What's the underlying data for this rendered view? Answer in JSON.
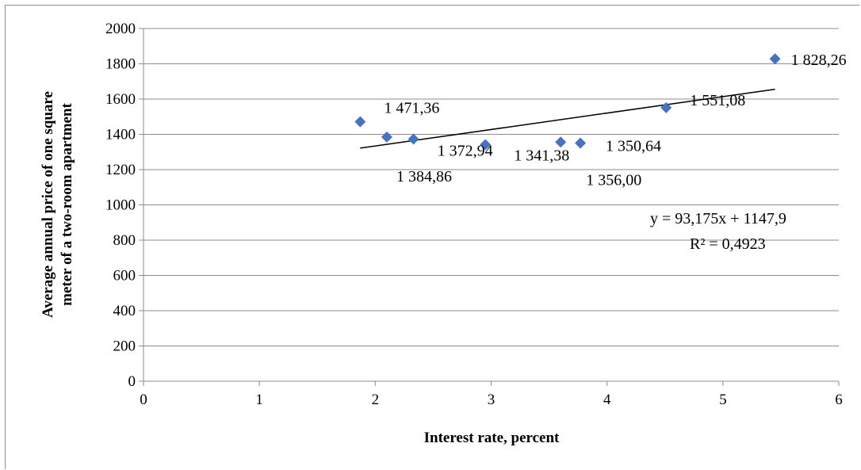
{
  "chart_data": {
    "type": "scatter",
    "xlabel": "Interest rate, percent",
    "ylabel_lines": [
      "Average  annual price of one square",
      "meter of a two-room  apartment"
    ],
    "xlim": [
      0,
      6
    ],
    "ylim": [
      0,
      2000
    ],
    "x_ticks": [
      "0",
      "1",
      "2",
      "3",
      "4",
      "5",
      "6"
    ],
    "y_ticks": [
      "0",
      "200",
      "400",
      "600",
      "800",
      "1000",
      "1200",
      "1400",
      "1600",
      "1800",
      "2000"
    ],
    "grid": "horizontal",
    "marker_color": "#4472c4",
    "points": [
      {
        "x": 1.87,
        "y": 1471.36,
        "label": "1 471,36"
      },
      {
        "x": 2.1,
        "y": 1384.86,
        "label": "1 384,86"
      },
      {
        "x": 2.33,
        "y": 1372.94,
        "label": "1 372,94"
      },
      {
        "x": 2.95,
        "y": 1341.38,
        "label": "1 341,38"
      },
      {
        "x": 3.6,
        "y": 1356.0,
        "label": "1 356,00"
      },
      {
        "x": 3.77,
        "y": 1350.64,
        "label": "1 350,64"
      },
      {
        "x": 4.51,
        "y": 1551.08,
        "label": "1 551,08"
      },
      {
        "x": 5.45,
        "y": 1828.26,
        "label": "1 828,26"
      }
    ],
    "trendline": {
      "type": "linear",
      "slope": 93.175,
      "intercept": 1147.9,
      "x_range": [
        1.87,
        5.45
      ],
      "equation": "y = 93,175x   + 1147,9",
      "r_squared": "R² = 0,4923"
    }
  }
}
